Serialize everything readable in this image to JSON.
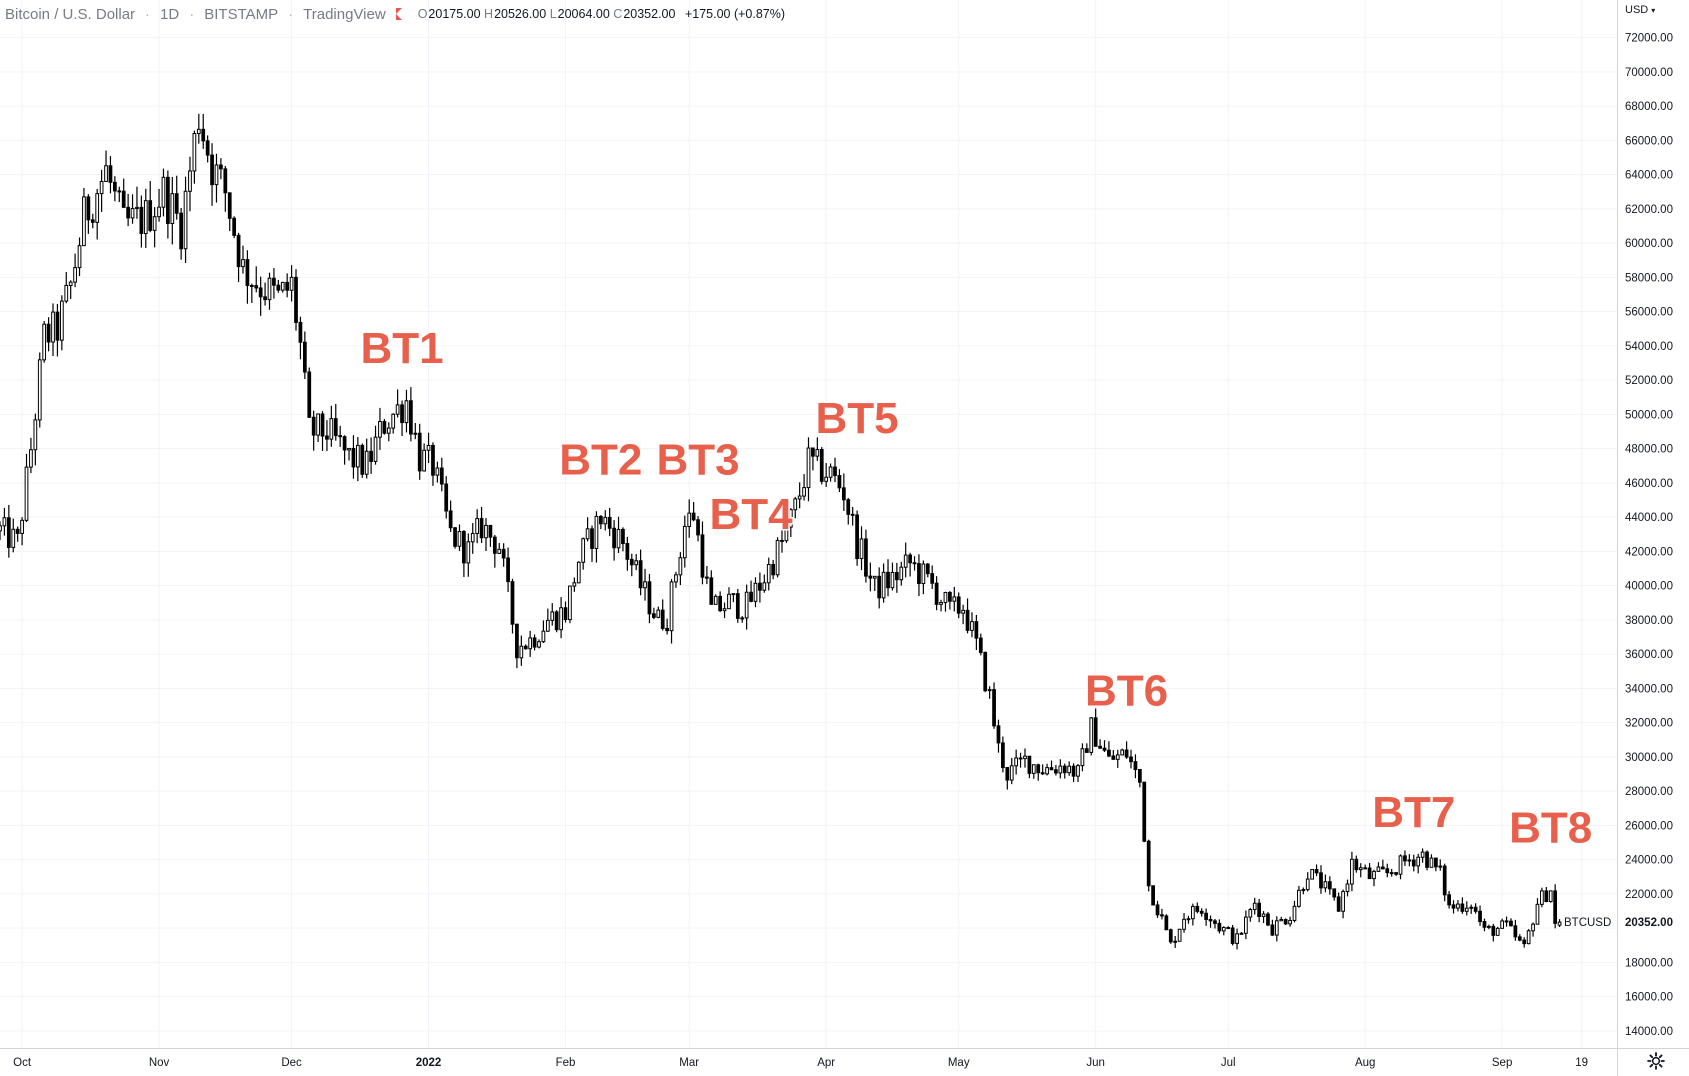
{
  "header": {
    "symbol": "Bitcoin / U.S. Dollar",
    "interval": "1D",
    "exchange": "BITSTAMP",
    "source": "TradingView",
    "open_label": "O",
    "open": "20175.00",
    "high_label": "H",
    "high": "20526.00",
    "low_label": "L",
    "low": "20064.00",
    "close_label": "C",
    "close": "20352.00",
    "change": "+175.00 (+0.87%)",
    "flag_color": "#ef5350"
  },
  "currency_menu": "USD",
  "settings_icon": "gear-icon",
  "colors": {
    "grid": "#f0f3fa",
    "candle": "#000000",
    "annotation": "#e8604c",
    "price_label_bg": "#ffffff"
  },
  "chart_data": {
    "type": "candlestick",
    "symbol_tag": "BTCUSD",
    "last_price": "20352.00",
    "y_axis": {
      "ticks": [
        "14000.00",
        "16000.00",
        "18000.00",
        "20352.00",
        "22000.00",
        "24000.00",
        "26000.00",
        "28000.00",
        "30000.00",
        "32000.00",
        "34000.00",
        "36000.00",
        "38000.00",
        "40000.00",
        "42000.00",
        "44000.00",
        "46000.00",
        "48000.00",
        "50000.00",
        "52000.00",
        "54000.00",
        "56000.00",
        "58000.00",
        "60000.00",
        "62000.00",
        "64000.00",
        "66000.00",
        "68000.00",
        "70000.00",
        "72000.00"
      ],
      "range": [
        13000,
        74200
      ]
    },
    "x_axis": {
      "ticks": [
        {
          "label": "Oct",
          "date": "2021-10-01"
        },
        {
          "label": "Nov",
          "date": "2021-11-01"
        },
        {
          "label": "Dec",
          "date": "2021-12-01"
        },
        {
          "label": "2022",
          "date": "2022-01-01",
          "bold": true
        },
        {
          "label": "Feb",
          "date": "2022-02-01"
        },
        {
          "label": "Mar",
          "date": "2022-03-01"
        },
        {
          "label": "Apr",
          "date": "2022-04-01"
        },
        {
          "label": "May",
          "date": "2022-05-01"
        },
        {
          "label": "Jun",
          "date": "2022-06-01"
        },
        {
          "label": "Jul",
          "date": "2022-07-01"
        },
        {
          "label": "Aug",
          "date": "2022-08-01"
        },
        {
          "label": "Sep",
          "date": "2022-09-01"
        },
        {
          "label": "19",
          "date": "2022-09-19"
        }
      ],
      "range": [
        "2021-09-26",
        "2022-09-27"
      ]
    },
    "grid": true,
    "close_path": [
      [
        "2021-09-26",
        43200
      ],
      [
        "2021-09-30",
        42500
      ],
      [
        "2021-10-03",
        48000
      ],
      [
        "2021-10-06",
        54500
      ],
      [
        "2021-10-09",
        55000
      ],
      [
        "2021-10-12",
        57500
      ],
      [
        "2021-10-15",
        61500
      ],
      [
        "2021-10-20",
        64200
      ],
      [
        "2021-10-24",
        61000
      ],
      [
        "2021-10-29",
        61500
      ],
      [
        "2021-11-02",
        63000
      ],
      [
        "2021-11-06",
        61000
      ],
      [
        "2021-11-10",
        67500
      ],
      [
        "2021-11-13",
        64500
      ],
      [
        "2021-11-16",
        63000
      ],
      [
        "2021-11-20",
        58500
      ],
      [
        "2021-11-24",
        57500
      ],
      [
        "2021-11-28",
        56800
      ],
      [
        "2021-12-01",
        57500
      ],
      [
        "2021-12-03",
        54000
      ],
      [
        "2021-12-05",
        49000
      ],
      [
        "2021-12-09",
        49000
      ],
      [
        "2021-12-14",
        47500
      ],
      [
        "2021-12-18",
        47000
      ],
      [
        "2021-12-22",
        49500
      ],
      [
        "2021-12-27",
        50800
      ],
      [
        "2021-12-30",
        47500
      ],
      [
        "2022-01-02",
        47000
      ],
      [
        "2022-01-06",
        43000
      ],
      [
        "2022-01-10",
        42000
      ],
      [
        "2022-01-13",
        43500
      ],
      [
        "2022-01-17",
        42300
      ],
      [
        "2022-01-21",
        36500
      ],
      [
        "2022-01-24",
        36800
      ],
      [
        "2022-01-28",
        38000
      ],
      [
        "2022-02-01",
        38500
      ],
      [
        "2022-02-04",
        41500
      ],
      [
        "2022-02-09",
        44000
      ],
      [
        "2022-02-14",
        42500
      ],
      [
        "2022-02-18",
        40000
      ],
      [
        "2022-02-22",
        38000
      ],
      [
        "2022-02-24",
        38200
      ],
      [
        "2022-02-28",
        43500
      ],
      [
        "2022-03-02",
        44200
      ],
      [
        "2022-03-06",
        38500
      ],
      [
        "2022-03-10",
        39000
      ],
      [
        "2022-03-14",
        38800
      ],
      [
        "2022-03-18",
        40500
      ],
      [
        "2022-03-22",
        42500
      ],
      [
        "2022-03-25",
        44500
      ],
      [
        "2022-03-28",
        47200
      ],
      [
        "2022-04-02",
        46500
      ],
      [
        "2022-04-05",
        45500
      ],
      [
        "2022-04-08",
        42500
      ],
      [
        "2022-04-12",
        39800
      ],
      [
        "2022-04-16",
        40400
      ],
      [
        "2022-04-20",
        41300
      ],
      [
        "2022-04-25",
        40000
      ],
      [
        "2022-04-29",
        38500
      ],
      [
        "2022-05-02",
        38800
      ],
      [
        "2022-05-05",
        36500
      ],
      [
        "2022-05-08",
        33500
      ],
      [
        "2022-05-10",
        30500
      ],
      [
        "2022-05-12",
        29000
      ],
      [
        "2022-05-16",
        29800
      ],
      [
        "2022-05-20",
        29300
      ],
      [
        "2022-05-25",
        29500
      ],
      [
        "2022-05-28",
        29000
      ],
      [
        "2022-05-31",
        31700
      ],
      [
        "2022-06-04",
        29800
      ],
      [
        "2022-06-08",
        30200
      ],
      [
        "2022-06-11",
        28500
      ],
      [
        "2022-06-13",
        22500
      ],
      [
        "2022-06-16",
        20500
      ],
      [
        "2022-06-18",
        19000
      ],
      [
        "2022-06-21",
        20700
      ],
      [
        "2022-06-25",
        21200
      ],
      [
        "2022-06-29",
        20100
      ],
      [
        "2022-07-03",
        19300
      ],
      [
        "2022-07-07",
        21500
      ],
      [
        "2022-07-11",
        20000
      ],
      [
        "2022-07-15",
        20800
      ],
      [
        "2022-07-19",
        23300
      ],
      [
        "2022-07-22",
        22600
      ],
      [
        "2022-07-26",
        21200
      ],
      [
        "2022-07-29",
        23800
      ],
      [
        "2022-08-02",
        23000
      ],
      [
        "2022-08-06",
        23200
      ],
      [
        "2022-08-10",
        23900
      ],
      [
        "2022-08-14",
        24300
      ],
      [
        "2022-08-18",
        23200
      ],
      [
        "2022-08-20",
        21200
      ],
      [
        "2022-08-25",
        21500
      ],
      [
        "2022-08-28",
        19800
      ],
      [
        "2022-09-02",
        20100
      ],
      [
        "2022-09-06",
        18800
      ],
      [
        "2022-09-09",
        21500
      ],
      [
        "2022-09-12",
        22300
      ],
      [
        "2022-09-13",
        20200
      ],
      [
        "2022-09-14",
        20352
      ]
    ],
    "annotations": [
      {
        "text": "BT1",
        "date": "2021-12-26",
        "price": 53000
      },
      {
        "text": "BT2",
        "date": "2022-02-09",
        "price": 46500
      },
      {
        "text": "BT3",
        "date": "2022-03-03",
        "price": 46500
      },
      {
        "text": "BT4",
        "date": "2022-03-15",
        "price": 43300
      },
      {
        "text": "BT5",
        "date": "2022-04-08",
        "price": 48900
      },
      {
        "text": "BT6",
        "date": "2022-06-08",
        "price": 33000
      },
      {
        "text": "BT7",
        "date": "2022-08-12",
        "price": 25900
      },
      {
        "text": "BT8",
        "date": "2022-09-12",
        "price": 25000
      }
    ]
  }
}
